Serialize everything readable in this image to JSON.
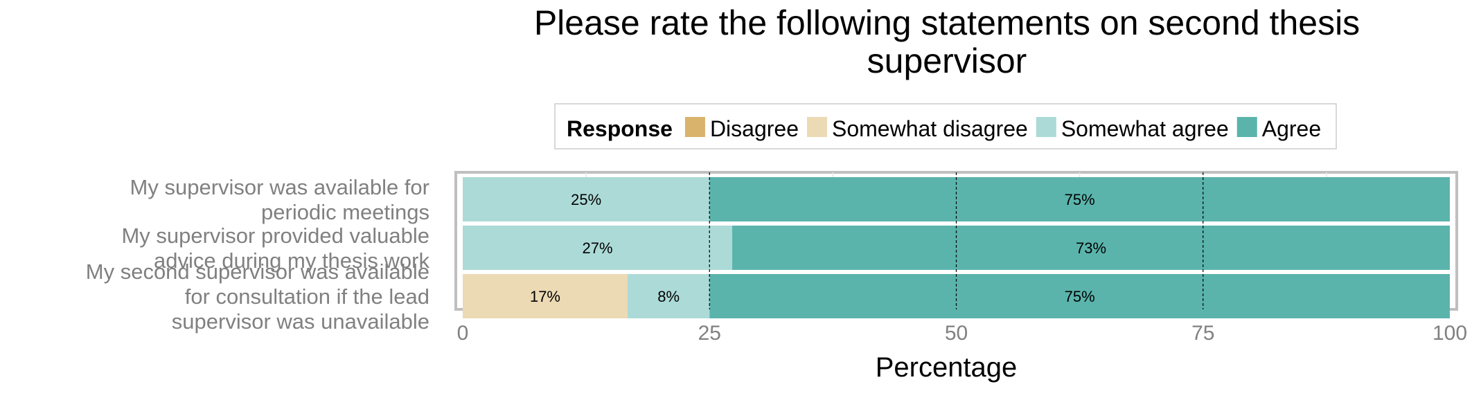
{
  "chart_data": {
    "type": "bar",
    "orientation": "horizontal",
    "stacked": true,
    "title": "Please rate the following statements on second thesis supervisor",
    "xlabel": "Percentage",
    "ylabel": "",
    "xlim": [
      0,
      100
    ],
    "x_ticks": [
      "0",
      "25",
      "50",
      "75",
      "100"
    ],
    "legend": {
      "title": "Response",
      "placement": "top",
      "entries": [
        "Disagree",
        "Somewhat disagree",
        "Somewhat agree",
        "Agree"
      ]
    },
    "colors": {
      "Disagree": "#d9b36b",
      "Somewhat disagree": "#ecdab4",
      "Somewhat agree": "#acdad7",
      "Agree": "#5ab4ac"
    },
    "categories": [
      "My supervisor was available for periodic meetings",
      "My supervisor provided valuable advice during my thesis work",
      "My second supervisor was available for consultation if the lead supervisor was unavailable"
    ],
    "series": [
      {
        "name": "Disagree",
        "values": [
          0,
          0,
          0
        ]
      },
      {
        "name": "Somewhat disagree",
        "values": [
          0,
          0,
          16.7
        ]
      },
      {
        "name": "Somewhat agree",
        "values": [
          25,
          27.3,
          8.3
        ]
      },
      {
        "name": "Agree",
        "values": [
          75,
          72.7,
          75
        ]
      }
    ],
    "data_labels": [
      [
        "",
        "",
        "25%",
        "75%"
      ],
      [
        "",
        "",
        "27%",
        "73%"
      ],
      [
        "",
        "17%",
        "8%",
        "75%"
      ]
    ],
    "grid": true
  }
}
